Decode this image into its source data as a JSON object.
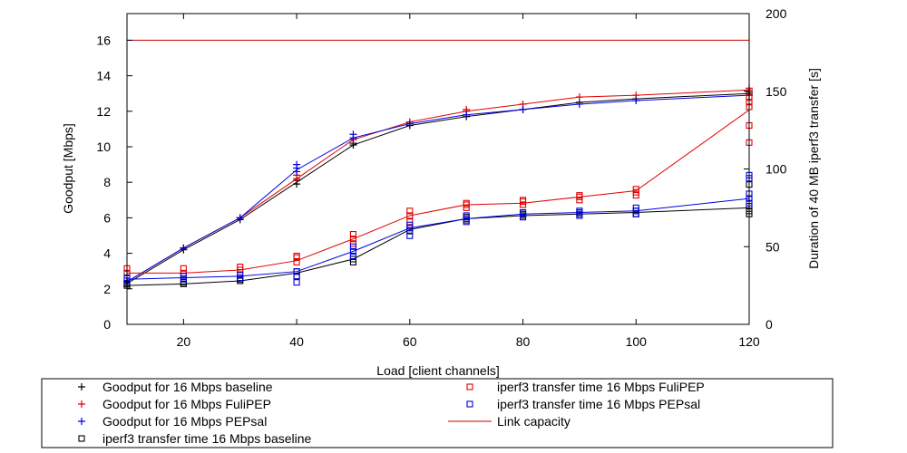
{
  "chart_data": {
    "type": "line",
    "xlabel": "Load [client channels]",
    "ylabel": "Goodput [Mbps]",
    "y2label": "Duration of 40 MB iperf3 transfer [s]",
    "xlim": [
      10,
      120
    ],
    "ylim": [
      0,
      17.5
    ],
    "y2lim": [
      0,
      200
    ],
    "xticks": [
      20,
      40,
      60,
      80,
      100,
      120
    ],
    "yticks": [
      0,
      2,
      4,
      6,
      8,
      10,
      12,
      14,
      16
    ],
    "y2ticks": [
      0,
      50,
      100,
      150,
      200
    ],
    "grid": false,
    "legend_position": "bottom",
    "link_capacity": 16,
    "series": [
      {
        "name": "Goodput for 16 Mbps baseline",
        "axis": "left",
        "marker": "plus",
        "color": "#000000",
        "x": [
          10,
          20,
          30,
          40,
          50,
          60,
          70,
          80,
          90,
          100,
          120
        ],
        "values": [
          2.3,
          4.2,
          5.9,
          8.0,
          10.1,
          11.2,
          11.7,
          12.1,
          12.5,
          12.7,
          13.0
        ],
        "points": [
          [
            10,
            2.2
          ],
          [
            10,
            2.4
          ],
          [
            20,
            4.2
          ],
          [
            30,
            5.9
          ],
          [
            40,
            7.9
          ],
          [
            40,
            8.1
          ],
          [
            50,
            10.1
          ],
          [
            50,
            10.2
          ],
          [
            60,
            11.2
          ],
          [
            70,
            11.7
          ],
          [
            80,
            12.1
          ],
          [
            90,
            12.5
          ],
          [
            100,
            12.7
          ],
          [
            120,
            13.0
          ],
          [
            120,
            13.1
          ]
        ]
      },
      {
        "name": "Goodput for 16 Mbps FuliPEP",
        "axis": "left",
        "marker": "plus",
        "color": "#e00000",
        "x": [
          10,
          20,
          30,
          40,
          50,
          60,
          70,
          80,
          90,
          100,
          120
        ],
        "values": [
          2.4,
          4.3,
          6.0,
          8.2,
          10.4,
          11.4,
          12.0,
          12.4,
          12.8,
          12.9,
          13.2
        ],
        "points": [
          [
            10,
            2.4
          ],
          [
            20,
            4.3
          ],
          [
            30,
            6.0
          ],
          [
            40,
            8.2
          ],
          [
            40,
            8.4
          ],
          [
            50,
            10.4
          ],
          [
            60,
            11.4
          ],
          [
            70,
            12.0
          ],
          [
            70,
            12.1
          ],
          [
            80,
            12.4
          ],
          [
            90,
            12.8
          ],
          [
            100,
            12.9
          ],
          [
            120,
            13.2
          ],
          [
            120,
            13.3
          ]
        ]
      },
      {
        "name": "Goodput for 16 Mbps PEPsal",
        "axis": "left",
        "marker": "plus",
        "color": "#0000e0",
        "x": [
          10,
          20,
          30,
          40,
          50,
          60,
          70,
          80,
          90,
          100,
          120
        ],
        "values": [
          2.4,
          4.3,
          6.0,
          8.7,
          10.5,
          11.3,
          11.8,
          12.1,
          12.4,
          12.6,
          12.9
        ],
        "points": [
          [
            10,
            2.4
          ],
          [
            20,
            4.3
          ],
          [
            30,
            6.0
          ],
          [
            40,
            8.6
          ],
          [
            40,
            8.8
          ],
          [
            40,
            9.0
          ],
          [
            50,
            10.5
          ],
          [
            50,
            10.7
          ],
          [
            60,
            11.3
          ],
          [
            70,
            11.8
          ],
          [
            80,
            12.1
          ],
          [
            90,
            12.4
          ],
          [
            100,
            12.6
          ],
          [
            120,
            12.9
          ]
        ]
      },
      {
        "name": "iperf3 transfer time 16 Mbps baseline",
        "axis": "right",
        "marker": "square",
        "color": "#000000",
        "x": [
          10,
          20,
          30,
          40,
          50,
          60,
          70,
          80,
          90,
          100,
          120
        ],
        "values": [
          25,
          26,
          28,
          33,
          42,
          61,
          68,
          70,
          71,
          72,
          75
        ],
        "points": [
          [
            10,
            25
          ],
          [
            10,
            26
          ],
          [
            20,
            26
          ],
          [
            20,
            27
          ],
          [
            30,
            28
          ],
          [
            30,
            29
          ],
          [
            40,
            31
          ],
          [
            40,
            34
          ],
          [
            50,
            40
          ],
          [
            50,
            42
          ],
          [
            60,
            60
          ],
          [
            60,
            62
          ],
          [
            70,
            67
          ],
          [
            70,
            69
          ],
          [
            80,
            70
          ],
          [
            80,
            71
          ],
          [
            90,
            71
          ],
          [
            100,
            71
          ],
          [
            100,
            73
          ],
          [
            120,
            71
          ],
          [
            120,
            73
          ],
          [
            120,
            76
          ],
          [
            120,
            90
          ]
        ]
      },
      {
        "name": "iperf3 transfer time 16 Mbps FuliPEP",
        "axis": "right",
        "marker": "square",
        "color": "#e00000",
        "x": [
          10,
          20,
          30,
          40,
          50,
          60,
          70,
          80,
          90,
          100,
          120
        ],
        "values": [
          33,
          33,
          35,
          41,
          55,
          70,
          77,
          78,
          82,
          86,
          138
        ],
        "points": [
          [
            10,
            33
          ],
          [
            10,
            36
          ],
          [
            20,
            33
          ],
          [
            20,
            36
          ],
          [
            30,
            35
          ],
          [
            30,
            37
          ],
          [
            40,
            40
          ],
          [
            40,
            43
          ],
          [
            40,
            44
          ],
          [
            50,
            52
          ],
          [
            50,
            55
          ],
          [
            50,
            58
          ],
          [
            60,
            66
          ],
          [
            60,
            70
          ],
          [
            60,
            73
          ],
          [
            70,
            75
          ],
          [
            70,
            77
          ],
          [
            70,
            78
          ],
          [
            80,
            77
          ],
          [
            80,
            79
          ],
          [
            80,
            80
          ],
          [
            90,
            80
          ],
          [
            90,
            82
          ],
          [
            90,
            83
          ],
          [
            100,
            83
          ],
          [
            100,
            85
          ],
          [
            100,
            87
          ],
          [
            120,
            117
          ],
          [
            120,
            128
          ],
          [
            120,
            140
          ],
          [
            120,
            143
          ],
          [
            120,
            146
          ]
        ]
      },
      {
        "name": "iperf3 transfer time 16 Mbps PEPsal",
        "axis": "right",
        "marker": "square",
        "color": "#0000e0",
        "x": [
          10,
          20,
          30,
          40,
          50,
          60,
          70,
          80,
          90,
          100,
          120
        ],
        "values": [
          29,
          30,
          31,
          34,
          47,
          62,
          68,
          71,
          72,
          73,
          81
        ],
        "points": [
          [
            10,
            28
          ],
          [
            10,
            30
          ],
          [
            20,
            29
          ],
          [
            20,
            31
          ],
          [
            30,
            30
          ],
          [
            30,
            32
          ],
          [
            40,
            27
          ],
          [
            40,
            31
          ],
          [
            40,
            34
          ],
          [
            50,
            44
          ],
          [
            50,
            47
          ],
          [
            50,
            50
          ],
          [
            60,
            57
          ],
          [
            60,
            62
          ],
          [
            60,
            64
          ],
          [
            70,
            66
          ],
          [
            70,
            68
          ],
          [
            70,
            70
          ],
          [
            80,
            69
          ],
          [
            80,
            71
          ],
          [
            80,
            72
          ],
          [
            90,
            70
          ],
          [
            90,
            72
          ],
          [
            90,
            73
          ],
          [
            100,
            71
          ],
          [
            100,
            73
          ],
          [
            100,
            75
          ],
          [
            120,
            78
          ],
          [
            120,
            81
          ],
          [
            120,
            84
          ],
          [
            120,
            94
          ],
          [
            120,
            96
          ]
        ]
      },
      {
        "name": "Link capacity",
        "axis": "left",
        "marker": "line",
        "color": "#cc0000",
        "x": [
          10,
          120
        ],
        "values": [
          16,
          16
        ]
      }
    ]
  }
}
